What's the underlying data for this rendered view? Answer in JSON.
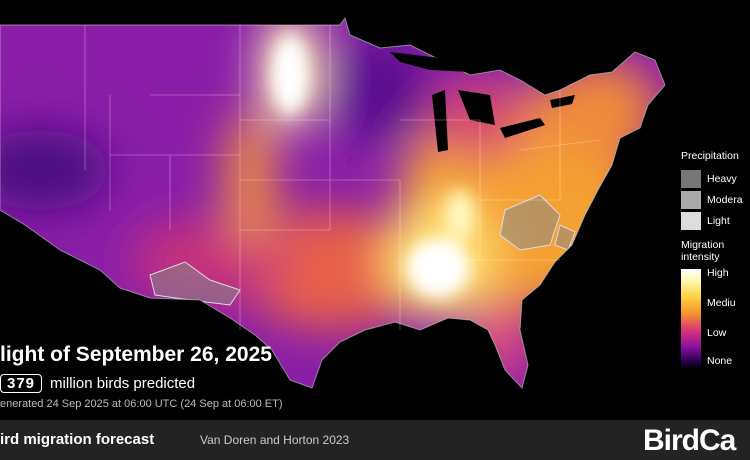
{
  "forecast": {
    "title": "light of September 26, 2025",
    "count": 379,
    "count_caption": "million birds predicted",
    "generated": "enerated 24 Sep 2025 at 06:00 UTC (24 Sep at 06:00 ET)"
  },
  "legend": {
    "precipitation": {
      "title": "Precipitation",
      "levels": [
        "Heavy",
        "Modera",
        "Light"
      ]
    },
    "migration": {
      "title": [
        "Migration",
        "intensity"
      ],
      "levels": [
        "High",
        "Mediu",
        "Low",
        "None"
      ]
    }
  },
  "footer": {
    "product": "ird migration forecast",
    "citation": "Van Doren and Horton 2023",
    "brand": "BirdCa"
  }
}
